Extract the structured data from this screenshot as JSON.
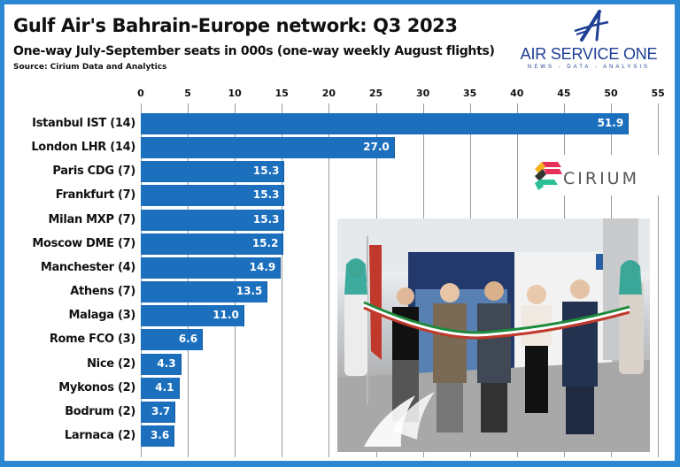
{
  "header": {
    "title": "Gulf Air's Bahrain-Europe network: Q3 2023",
    "subtitle": "One-way July-September seats in 000s (one-way weekly August flights)",
    "source": "Source: Cirium Data and Analytics"
  },
  "branding": {
    "publisher_name": "AIR SERVICE ONE",
    "publisher_tagline": "NEWS - DATA - ANALYSIS",
    "data_provider": "CIRIUM"
  },
  "colors": {
    "frame": "#2b87d1",
    "bar": "#1b6fbd",
    "logo_blue": "#1d3f94",
    "gridline": "#9a9a9a"
  },
  "chart_data": {
    "type": "bar",
    "orientation": "horizontal",
    "title": "Gulf Air's Bahrain-Europe network: Q3 2023",
    "subtitle": "One-way July-September seats in 000s (one-way weekly August flights)",
    "xlabel": "",
    "ylabel": "",
    "xlim": [
      0,
      55
    ],
    "ticks": [
      "0",
      "5",
      "10",
      "15",
      "20",
      "25",
      "30",
      "35",
      "40",
      "45",
      "50",
      "55"
    ],
    "axis_position": "top",
    "grid": true,
    "legend": "none",
    "categories": [
      "Istanbul IST (14)",
      "London LHR (14)",
      "Paris CDG (7)",
      "Frankfurt (7)",
      "Milan MXP (7)",
      "Moscow DME (7)",
      "Manchester (4)",
      "Athens (7)",
      "Malaga (3)",
      "Rome FCO (3)",
      "Nice (2)",
      "Mykonos (2)",
      "Bodrum (2)",
      "Larnaca (2)"
    ],
    "values": [
      51.9,
      27.0,
      15.3,
      15.3,
      15.3,
      15.2,
      14.9,
      13.5,
      11.0,
      6.6,
      4.3,
      4.1,
      3.7,
      3.6
    ],
    "value_labels": [
      "51.9",
      "27.0",
      "15.3",
      "15.3",
      "15.3",
      "15.2",
      "14.9",
      "13.5",
      "11.0",
      "6.6",
      "4.3",
      "4.1",
      "3.7",
      "3.6"
    ]
  },
  "photo": {
    "description": "ribbon-cutting ceremony photo with Gulf Air logo"
  }
}
